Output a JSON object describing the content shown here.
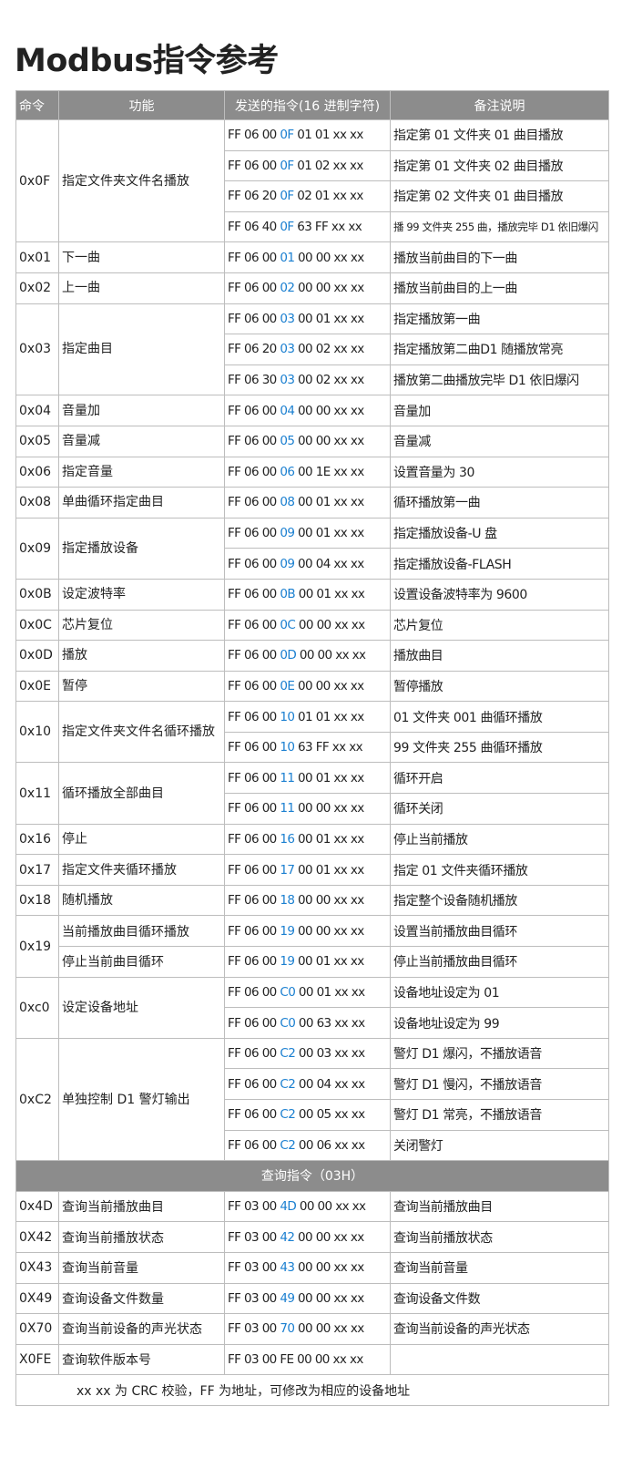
{
  "title": "Modbus指令参考",
  "headers": [
    "命令",
    "功能",
    "发送的指令(16 进制字符)",
    "备注说明"
  ],
  "highlight_color": "#1a7fd0",
  "groups": [
    {
      "cmd": "0x0F",
      "func": "指定文件夹文件名播放",
      "rows": [
        {
          "pre": "FF 06 00 ",
          "hl": "0F",
          "post": " 01 01 xx xx",
          "note": "指定第 01 文件夹 01 曲目播放"
        },
        {
          "pre": "FF 06 00 ",
          "hl": "0F",
          "post": " 01 02 xx xx",
          "note": "指定第 01 文件夹 02 曲目播放"
        },
        {
          "pre": "FF 06 20 ",
          "hl": "0F",
          "post": " 02 01 xx xx",
          "note": "指定第 02 文件夹 01 曲目播放"
        },
        {
          "pre": "FF 06 40 ",
          "hl": "0F",
          "post": " 63 FF xx xx",
          "note": "播 99 文件夹 255 曲，播放完毕 D1 依旧爆闪"
        }
      ]
    },
    {
      "cmd": "0x01",
      "func": "下一曲",
      "rows": [
        {
          "pre": "FF 06 00 ",
          "hl": "01",
          "post": " 00 00 xx xx",
          "note": "播放当前曲目的下一曲"
        }
      ]
    },
    {
      "cmd": "0x02",
      "func": "上一曲",
      "rows": [
        {
          "pre": "FF 06 00 ",
          "hl": "02",
          "post": " 00 00 xx xx",
          "note": "播放当前曲目的上一曲"
        }
      ]
    },
    {
      "cmd": "0x03",
      "func": "指定曲目",
      "rows": [
        {
          "pre": "FF 06 00 ",
          "hl": "03",
          "post": " 00 01 xx xx",
          "note": "指定播放第一曲"
        },
        {
          "pre": "FF 06 20 ",
          "hl": "03",
          "post": " 00 02 xx xx",
          "note": "指定播放第二曲D1 随播放常亮"
        },
        {
          "pre": "FF 06 30 ",
          "hl": "03",
          "post": " 00 02 xx xx",
          "note": "播放第二曲播放完毕 D1 依旧爆闪"
        }
      ]
    },
    {
      "cmd": "0x04",
      "func": "音量加",
      "rows": [
        {
          "pre": "FF 06 00 ",
          "hl": "04",
          "post": " 00 00 xx xx",
          "note": "音量加"
        }
      ]
    },
    {
      "cmd": "0x05",
      "func": "音量减",
      "rows": [
        {
          "pre": "FF 06 00 ",
          "hl": "05",
          "post": " 00 00 xx xx",
          "note": "音量减"
        }
      ]
    },
    {
      "cmd": "0x06",
      "func": "指定音量",
      "rows": [
        {
          "pre": "FF 06 00 ",
          "hl": "06",
          "post": " 00 1E xx xx",
          "note": "设置音量为 30"
        }
      ]
    },
    {
      "cmd": "0x08",
      "func": "单曲循环指定曲目",
      "rows": [
        {
          "pre": "FF 06 00 ",
          "hl": "08",
          "post": " 00 01 xx xx",
          "note": "循环播放第一曲"
        }
      ]
    },
    {
      "cmd": "0x09",
      "func": "指定播放设备",
      "rows": [
        {
          "pre": "FF 06 00 ",
          "hl": "09",
          "post": " 00 01 xx xx",
          "note": "指定播放设备-U 盘"
        },
        {
          "pre": "FF 06 00 ",
          "hl": "09",
          "post": " 00 04 xx xx",
          "note": "指定播放设备-FLASH"
        }
      ]
    },
    {
      "cmd": "0x0B",
      "func": "设定波特率",
      "rows": [
        {
          "pre": "FF 06 00 ",
          "hl": "0B",
          "post": " 00 01 xx xx",
          "note": "设置设备波特率为 9600"
        }
      ]
    },
    {
      "cmd": "0x0C",
      "func": "芯片复位",
      "rows": [
        {
          "pre": "FF 06 00 ",
          "hl": "0C",
          "post": " 00 00 xx xx",
          "note": "芯片复位"
        }
      ]
    },
    {
      "cmd": "0x0D",
      "func": "播放",
      "rows": [
        {
          "pre": "FF 06 00 ",
          "hl": "0D",
          "post": " 00 00 xx xx",
          "note": "播放曲目"
        }
      ]
    },
    {
      "cmd": "0x0E",
      "func": "暂停",
      "rows": [
        {
          "pre": "FF 06 00 ",
          "hl": "0E",
          "post": " 00 00 xx xx",
          "note": "暂停播放"
        }
      ]
    },
    {
      "cmd": "0x10",
      "func": "指定文件夹文件名循环播放",
      "rows": [
        {
          "pre": "FF 06 00 ",
          "hl": "10",
          "post": " 01 01 xx xx",
          "note": "01 文件夹 001 曲循环播放"
        },
        {
          "pre": "FF 06 00 ",
          "hl": "10",
          "post": " 63 FF xx xx",
          "note": "99 文件夹 255 曲循环播放"
        }
      ]
    },
    {
      "cmd": "0x11",
      "func": "循环播放全部曲目",
      "rows": [
        {
          "pre": "FF 06 00 ",
          "hl": "11",
          "post": " 00 01 xx xx",
          "note": "循环开启"
        },
        {
          "pre": "FF 06 00 ",
          "hl": "11",
          "post": " 00 00 xx xx",
          "note": "循环关闭"
        }
      ]
    },
    {
      "cmd": "0x16",
      "func": "停止",
      "rows": [
        {
          "pre": "FF 06 00 ",
          "hl": "16",
          "post": " 00 01 xx xx",
          "note": "停止当前播放"
        }
      ]
    },
    {
      "cmd": "0x17",
      "func": "指定文件夹循环播放",
      "rows": [
        {
          "pre": "FF 06 00 ",
          "hl": "17",
          "post": " 00 01 xx xx",
          "note": "指定 01 文件夹循环播放"
        }
      ]
    },
    {
      "cmd": "0x18",
      "func": "随机播放",
      "rows": [
        {
          "pre": "FF 06 00 ",
          "hl": "18",
          "post": " 00 00 xx xx",
          "note": "指定整个设备随机播放"
        }
      ]
    },
    {
      "cmd": "0x19",
      "func": "",
      "rows": [
        {
          "func": "当前播放曲目循环播放",
          "pre": "FF 06 00 ",
          "hl": "19",
          "post": " 00 00 xx xx",
          "note": "设置当前播放曲目循环"
        },
        {
          "func": "停止当前曲目循环",
          "pre": "FF 06 00 ",
          "hl": "19",
          "post": " 00 01 xx xx",
          "note": "停止当前播放曲目循环"
        }
      ]
    },
    {
      "cmd": "0xc0",
      "func": "设定设备地址",
      "rows": [
        {
          "pre": "FF 06 00 ",
          "hl": "C0",
          "post": " 00 01 xx xx",
          "note": "设备地址设定为 01"
        },
        {
          "pre": "FF 06 00 ",
          "hl": "C0",
          "post": " 00 63 xx xx",
          "note": "设备地址设定为 99"
        }
      ]
    },
    {
      "cmd": "0xC2",
      "func": "单独控制 D1 警灯输出",
      "rows": [
        {
          "pre": "FF 06 00 ",
          "hl": "C2",
          "post": " 00 03 xx xx",
          "note": "警灯 D1 爆闪，不播放语音"
        },
        {
          "pre": "FF 06 00 ",
          "hl": "C2",
          "post": " 00 04 xx xx",
          "note": "警灯 D1 慢闪，不播放语音"
        },
        {
          "pre": "FF 06 00 ",
          "hl": "C2",
          "post": " 00 05 xx xx",
          "note": "警灯 D1 常亮，不播放语音"
        },
        {
          "pre": "FF 06 00 ",
          "hl": "C2",
          "post": " 00 06 xx xx",
          "note": "关闭警灯"
        }
      ]
    }
  ],
  "query_section": "查询指令（03H）",
  "query_rows": [
    {
      "cmd": "0x4D",
      "func": "查询当前播放曲目",
      "pre": "FF 03 00 ",
      "hl": "4D",
      "post": " 00 00 xx xx",
      "note": "查询当前播放曲目"
    },
    {
      "cmd": "0X42",
      "func": "查询当前播放状态",
      "pre": "FF 03 00 ",
      "hl": "42",
      "post": " 00 00 xx xx",
      "note": "查询当前播放状态"
    },
    {
      "cmd": "0X43",
      "func": "查询当前音量",
      "pre": "FF 03 00 ",
      "hl": "43",
      "post": " 00 00 xx xx",
      "note": "查询当前音量"
    },
    {
      "cmd": "0X49",
      "func": "查询设备文件数量",
      "pre": "FF 03 00 ",
      "hl": "49",
      "post": " 00 00 xx xx",
      "note": "查询设备文件数"
    },
    {
      "cmd": "0X70",
      "func": "查询当前设备的声光状态",
      "pre": "FF 03 00 ",
      "hl": "70",
      "post": " 00 00 xx xx",
      "note": "查询当前设备的声光状态"
    },
    {
      "cmd": "X0FE",
      "func": "查询软件版本号",
      "pre": "FF 03 00 FE 00 00 xx xx",
      "hl": "",
      "post": "",
      "note": ""
    }
  ],
  "footer": "xx xx 为 CRC 校验，FF 为地址，可修改为相应的设备地址"
}
